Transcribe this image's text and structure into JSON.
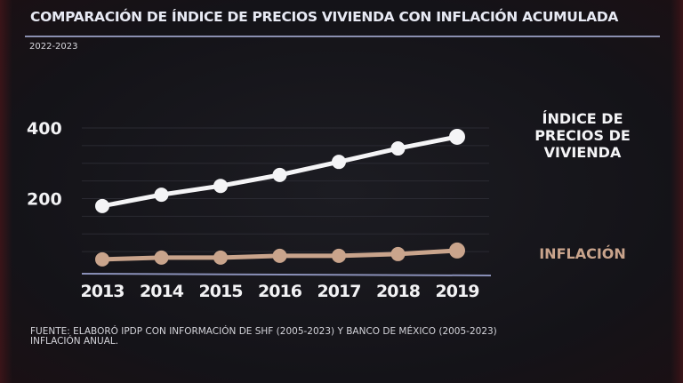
{
  "header": {
    "title": "COMPARACIÓN DE ÍNDICE DE PRECIOS VIVIENDA CON INFLACIÓN ACUMULADA",
    "subtitle": "2022-2023"
  },
  "chart_data": {
    "type": "line",
    "title": "COMPARACIÓN DE ÍNDICE DE PRECIOS VIVIENDA CON INFLACIÓN ACUMULADA",
    "subtitle": "2022-2023",
    "categories": [
      "2013",
      "2014",
      "2015",
      "2016",
      "2017",
      "2018",
      "2019"
    ],
    "yticks": [
      "200",
      "400"
    ],
    "ylim": [
      0,
      400
    ],
    "grid": true,
    "series": [
      {
        "name": "ÍNDICE DE PRECIOS DE VIVIENDA",
        "color": "#f4f4f6",
        "values": [
          179,
          211,
          236,
          267,
          304,
          342,
          375
        ]
      },
      {
        "name": "INFLACIÓN",
        "color": "#c9a48c",
        "values": [
          28,
          33,
          33,
          38,
          38,
          43,
          53
        ]
      }
    ],
    "legend_position": "right"
  },
  "legend": {
    "hpi_line1": "ÍNDICE DE",
    "hpi_line2": "PRECIOS DE",
    "hpi_line3": "VIVIENDA",
    "inflation": "INFLACIÓN"
  },
  "footer": {
    "source_line1": "FUENTE: ELABORÓ IPDP CON INFORMACIÓN DE SHF (2005-2023) Y BANCO DE MÉXICO (2005-2023)",
    "source_line2": "INFLACIÓN ANUAL."
  }
}
